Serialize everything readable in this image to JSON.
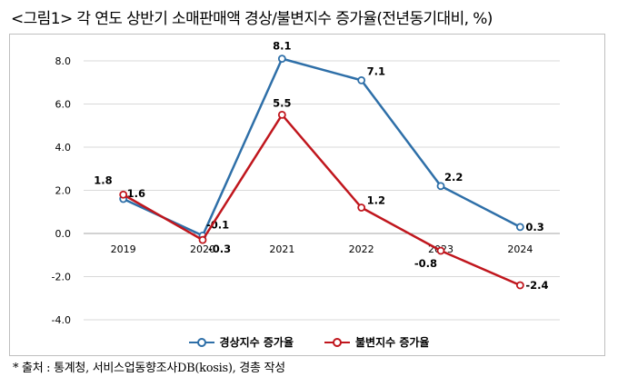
{
  "title": "<그림1> 각 연도 상반기 소매판매액 경상/불변지수 증가율(전년동기대비, %)",
  "source": "* 출처 : 통계청, 서비스업동향조사DB(kosis), 경총 작성",
  "chart_data": {
    "type": "line",
    "title": "<그림1> 각 연도 상반기 소매판매액 경상/불변지수 증가율(전년동기대비, %)",
    "xlabel": "",
    "ylabel": "",
    "categories": [
      "2019",
      "2020",
      "2021",
      "2022",
      "2023",
      "2024"
    ],
    "ylim": [
      -4.0,
      8.0
    ],
    "yticks": [
      "-4.0",
      "-2.0",
      "0.0",
      "2.0",
      "4.0",
      "6.0",
      "8.0"
    ],
    "grid": true,
    "legend": "bottom",
    "series": [
      {
        "name": "경상지수 증가율",
        "color": "#2e6fa8",
        "values": [
          1.6,
          -0.1,
          8.1,
          7.1,
          2.2,
          0.3
        ],
        "labels": [
          "1.6",
          "-0.1",
          "8.1",
          "7.1",
          "2.2",
          "0.3"
        ]
      },
      {
        "name": "불변지수 증가율",
        "color": "#c0161d",
        "values": [
          1.8,
          -0.3,
          5.5,
          1.2,
          -0.8,
          -2.4
        ],
        "labels": [
          "1.8",
          "-0.3",
          "5.5",
          "1.2",
          "-0.8",
          "-2.4"
        ]
      }
    ]
  }
}
